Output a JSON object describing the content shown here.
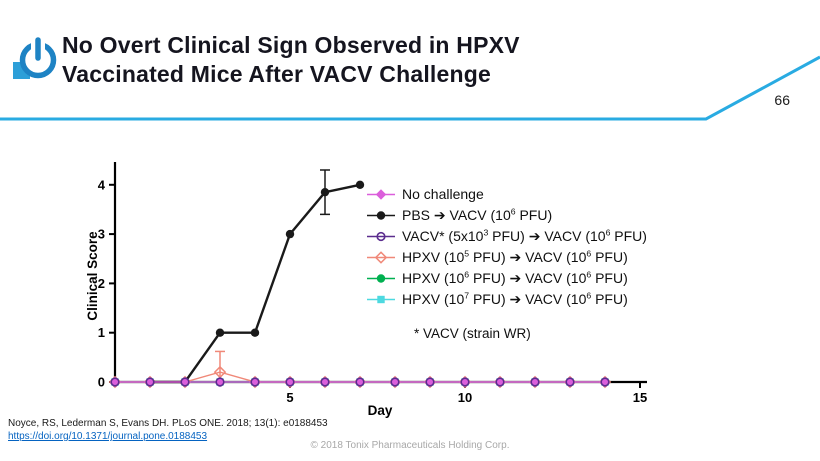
{
  "slide": {
    "title_line1": "No Overt Clinical Sign Observed in HPXV",
    "title_line2": "Vaccinated Mice After VACV Challenge",
    "page_number": "66",
    "accent_color": "#29ABE2",
    "footnote": "* VACV (strain WR)",
    "citation": "Noyce, RS, Lederman S, Evans DH. PLoS ONE. 2018; 13(1): e0188453",
    "citation_link": "https://doi.org/10.1371/journal.pone.0188453",
    "copyright": "© 2018 Tonix Pharmaceuticals Holding Corp."
  },
  "chart_data": {
    "type": "line",
    "title": "",
    "xlabel": "Day",
    "ylabel": "Clinical Score",
    "xlim": [
      0,
      15.2
    ],
    "ylim": [
      0,
      4.3
    ],
    "xticks": [
      5,
      10,
      15
    ],
    "yticks": [
      0,
      1,
      2,
      3,
      4
    ],
    "grid": false,
    "legend_position": "inside-right",
    "series": [
      {
        "key": "no-challenge",
        "label": "No challenge",
        "marker": "diamond",
        "color": "#DB5EDB",
        "line_width": 1.6,
        "z": 5,
        "x": [
          0,
          1,
          2,
          3,
          4,
          5,
          6,
          7,
          8,
          9,
          10,
          11,
          12,
          13,
          14
        ],
        "y": [
          0,
          0,
          0,
          0,
          0,
          0,
          0,
          0,
          0,
          0,
          0,
          0,
          0,
          0,
          0
        ]
      },
      {
        "key": "pbs-vacv",
        "label": "PBS ➔ VACV (10^6 PFU)",
        "marker": "circle",
        "color": "#1a1a1a",
        "line_width": 2.4,
        "z": 4,
        "x": [
          1,
          2,
          3,
          4,
          5,
          6,
          7
        ],
        "y": [
          0,
          0,
          1,
          1,
          3,
          3.85,
          4
        ],
        "error_bars": [
          {
            "x": 6,
            "lo": 3.4,
            "hi": 4.3
          }
        ]
      },
      {
        "key": "vacv-vacv",
        "label": "VACV* (5x10^3 PFU) ➔ VACV (10^6 PFU)",
        "marker": "circle-open",
        "color": "#5B2D8E",
        "line_width": 0,
        "z": 6,
        "x": [
          0,
          1,
          2,
          3,
          4,
          5,
          6,
          7,
          8,
          9,
          10,
          11,
          12,
          13,
          14
        ],
        "y": [
          0,
          0,
          0,
          0,
          0,
          0,
          0,
          0,
          0,
          0,
          0,
          0,
          0,
          0,
          0
        ]
      },
      {
        "key": "hpxv-1e5",
        "label": "HPXV (10^5 PFU) ➔ VACV (10^6 PFU)",
        "marker": "diamond-open",
        "color": "#F08878",
        "line_width": 1.4,
        "z": 3,
        "x": [
          0,
          1,
          2,
          3,
          4,
          5,
          6,
          7,
          8,
          9,
          10,
          11,
          12,
          13,
          14
        ],
        "y": [
          0,
          0,
          0,
          0.2,
          0,
          0,
          0,
          0,
          0,
          0,
          0,
          0,
          0,
          0,
          0
        ],
        "error_bars": [
          {
            "x": 3,
            "lo": 0,
            "hi": 0.62
          }
        ]
      },
      {
        "key": "hpxv-1e6",
        "label": "HPXV (10^6 PFU) ➔ VACV (10^6 PFU)",
        "marker": "circle",
        "color": "#00B050",
        "line_width": 1.4,
        "z": 2,
        "x": [
          0,
          1,
          2,
          3,
          4,
          5,
          6,
          7,
          8,
          9,
          10,
          11,
          12,
          13,
          14
        ],
        "y": [
          0,
          0,
          0,
          0,
          0,
          0,
          0,
          0,
          0,
          0,
          0,
          0,
          0,
          0,
          0
        ]
      },
      {
        "key": "hpxv-1e7",
        "label": "HPXV (10^7 PFU) ➔ VACV (10^6 PFU)",
        "marker": "square",
        "color": "#4DD9E0",
        "line_width": 1.4,
        "z": 1,
        "x": [
          0,
          1,
          2,
          3,
          4,
          5,
          6,
          7,
          8,
          9,
          10,
          11,
          12,
          13,
          14
        ],
        "y": [
          0,
          0,
          0,
          0,
          0,
          0,
          0,
          0,
          0,
          0,
          0,
          0,
          0,
          0,
          0
        ]
      }
    ]
  }
}
